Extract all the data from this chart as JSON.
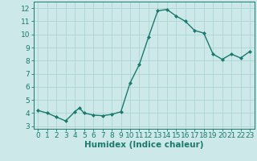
{
  "x": [
    0,
    1,
    2,
    3,
    4,
    4.5,
    5,
    6,
    7,
    8,
    9,
    10,
    11,
    12,
    13,
    14,
    15,
    16,
    17,
    18,
    19,
    20,
    21,
    22,
    23
  ],
  "y": [
    4.2,
    4.0,
    3.7,
    3.4,
    4.1,
    4.4,
    4.0,
    3.85,
    3.8,
    3.9,
    4.1,
    6.3,
    7.7,
    9.8,
    11.8,
    11.9,
    11.4,
    11.0,
    10.3,
    10.1,
    8.5,
    8.1,
    8.5,
    8.2,
    8.7
  ],
  "line_color": "#1a7a6e",
  "marker": "D",
  "marker_size": 2.0,
  "bg_color": "#cce8e8",
  "grid_color": "#aed4d4",
  "xlabel": "Humidex (Indice chaleur)",
  "xlim": [
    -0.5,
    23.5
  ],
  "ylim": [
    2.8,
    12.5
  ],
  "yticks": [
    3,
    4,
    5,
    6,
    7,
    8,
    9,
    10,
    11,
    12
  ],
  "xticks": [
    0,
    1,
    2,
    3,
    4,
    5,
    6,
    7,
    8,
    9,
    10,
    11,
    12,
    13,
    14,
    15,
    16,
    17,
    18,
    19,
    20,
    21,
    22,
    23
  ],
  "xlabel_fontsize": 7.5,
  "tick_fontsize": 6.5,
  "axis_color": "#1a7a6e",
  "linewidth": 1.0
}
